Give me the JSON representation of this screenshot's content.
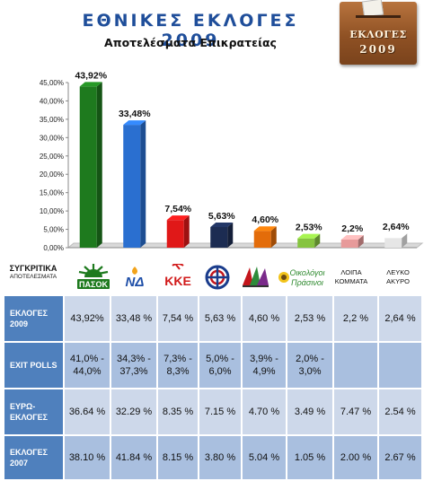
{
  "header": {
    "title": "ΕΘΝΙΚΕΣ ΕΚΛΟΓΕΣ 2009",
    "subtitle": "Αποτελέσματα Επικρατείας",
    "ballot_box_line1": "ΕΚΛΟΓΕΣ",
    "ballot_box_line2": "2009"
  },
  "chart_data": {
    "type": "bar",
    "title": "ΕΘΝΙΚΕΣ ΕΚΛΟΓΕΣ 2009",
    "subtitle": "Αποτελέσματα Επικρατείας",
    "categories": [
      "ΠΑΣΟΚ",
      "ΝΔ",
      "ΚΚΕ",
      "ΛΑΟΣ",
      "ΣΥΡΙΖΑ",
      "Οικολόγοι Πράσινοι",
      "ΛΟΙΠΑ ΚΟΜΜΑΤΑ",
      "ΛΕΥΚΟ ΑΚΥΡΟ"
    ],
    "values": [
      43.92,
      33.48,
      7.54,
      5.63,
      4.6,
      2.53,
      2.2,
      2.64
    ],
    "data_labels": [
      "43,92%",
      "33,48%",
      "7,54%",
      "5,63%",
      "4,60%",
      "2,53%",
      "2,2%",
      "2,64%"
    ],
    "bar_colors": [
      "#1e7a1e",
      "#2a6fd0",
      "#e01818",
      "#1c2c52",
      "#e36c0a",
      "#86c440",
      "#e79a9a",
      "#e6e6e6"
    ],
    "ylim": [
      0,
      45
    ],
    "y_ticks": [
      "0,00%",
      "5,00%",
      "10,00%",
      "15,00%",
      "20,00%",
      "25,00%",
      "30,00%",
      "35,00%",
      "40,00%",
      "45,00%"
    ],
    "grid": false,
    "legend": "none"
  },
  "logos": {
    "compare_line1": "ΣΥΓΚΡΙΤΙΚΑ",
    "compare_line2": "ΑΠΟΤΕΛΕΣΜΑΤΑ",
    "pasok": "ΠΑΣΟΚ",
    "nd": "ΝΔ",
    "kke": "ΚΚΕ",
    "greens_line1": "Οικολόγοι",
    "greens_line2": "Πράσινοι",
    "loipa_line1": "ΛΟΙΠΑ",
    "loipa_line2": "ΚΟΜΜΑΤΑ",
    "lefko_line1": "ΛΕΥΚΟ",
    "lefko_line2": "ΑΚΥΡΟ",
    "colors": {
      "pasok": "#1e7a1e",
      "nd": "#1f4fa8",
      "kke": "#d11a1a",
      "laos": "#1a3c8c",
      "syriza": "#c4161c",
      "greens": "#2f8a2f"
    }
  },
  "table": {
    "rows": [
      {
        "label": "ΕΚΛΟΓΕΣ 2009",
        "cells": [
          "43,92%",
          "33,48 %",
          "7,54 %",
          "5,63 %",
          "4,60 %",
          "2,53 %",
          "2,2 %",
          "2,64 %"
        ]
      },
      {
        "label": "EXIT POLLS",
        "cells": [
          "41,0% - 44,0%",
          "34,3% - 37,3%",
          "7,3% - 8,3%",
          "5,0% - 6,0%",
          "3,9% - 4,9%",
          "2,0% - 3,0%",
          "",
          ""
        ]
      },
      {
        "label": "ΕΥΡΩ-ΕΚΛΟΓΕΣ",
        "cells": [
          "36.64 %",
          "32.29 %",
          "8.35 %",
          "7.15 %",
          "4.70 %",
          "3.49 %",
          "7.47 %",
          "2.54 %"
        ]
      },
      {
        "label": "ΕΚΛΟΓΕΣ 2007",
        "cells": [
          "38.10 %",
          "41.84 %",
          "8.15 %",
          "3.80 %",
          "5.04 %",
          "1.05 %",
          "2.00 %",
          "2.67 %"
        ]
      }
    ]
  }
}
